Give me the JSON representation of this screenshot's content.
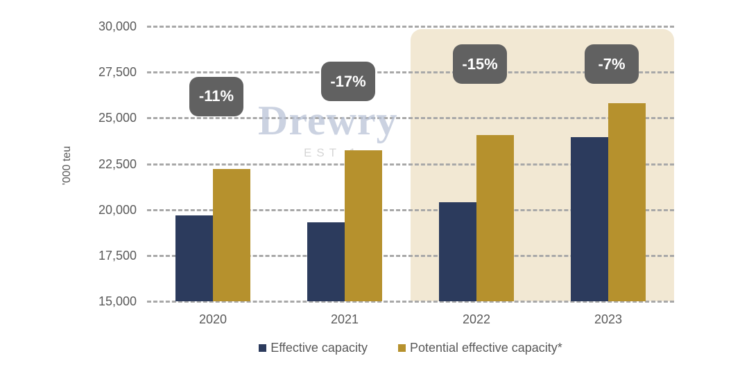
{
  "chart_data": {
    "type": "bar",
    "title": "",
    "xlabel": "",
    "ylabel": "'000 teu",
    "categories": [
      "2020",
      "2021",
      "2022",
      "2023"
    ],
    "series": [
      {
        "name": "Effective capacity",
        "color": "#2c3b5d",
        "values": [
          19700,
          19300,
          20400,
          23950
        ]
      },
      {
        "name": "Potential effective capacity*",
        "color": "#b6912d",
        "values": [
          22200,
          23250,
          24050,
          25800
        ]
      }
    ],
    "ylim": [
      15000,
      30000
    ],
    "ytick_step": 2500,
    "ytick_labels": [
      "15,000",
      "17,500",
      "20,000",
      "22,500",
      "25,000",
      "27,500",
      "30,000"
    ],
    "grid": "horizontal-dashed",
    "legend_position": "bottom",
    "annotations": [
      {
        "label": "-11%",
        "category": "2020",
        "y_value": 26200
      },
      {
        "label": "-17%",
        "category": "2021",
        "y_value": 27000
      },
      {
        "label": "-15%",
        "category": "2022",
        "y_value": 27950
      },
      {
        "label": "-7%",
        "category": "2023",
        "y_value": 27950
      }
    ],
    "highlight_region": {
      "categories": [
        "2022",
        "2023"
      ],
      "color": "#f2e8d3",
      "y_top_value": 29850
    },
    "watermark": {
      "line1": "Drewry",
      "line2": "EST 1"
    }
  },
  "colors": {
    "background": "#ffffff",
    "gridline": "#a8a8a8",
    "axis_text": "#595959",
    "badge_background": "#616161",
    "badge_text": "#ffffff",
    "watermark_text": "#b8c2d6"
  }
}
